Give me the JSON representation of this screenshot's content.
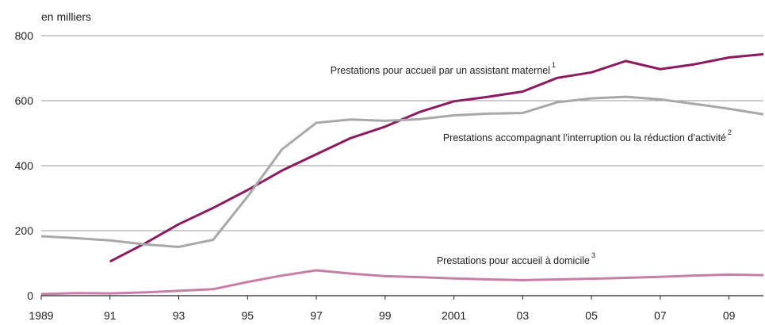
{
  "chart_data": {
    "type": "line",
    "y_label": "en milliers",
    "x": [
      1989,
      1990,
      1991,
      1992,
      1993,
      1994,
      1995,
      1996,
      1997,
      1998,
      1999,
      2000,
      2001,
      2002,
      2003,
      2004,
      2005,
      2006,
      2007,
      2008,
      2009,
      2010
    ],
    "series": [
      {
        "name": "Prestations pour accueil par un assistant maternel",
        "note": "1",
        "color": "#8b1a5e",
        "values": [
          null,
          null,
          105,
          160,
          220,
          270,
          325,
          385,
          435,
          485,
          520,
          565,
          598,
          612,
          628,
          670,
          687,
          722,
          697,
          712,
          733,
          743
        ]
      },
      {
        "name": "Prestations accompagnant l’interruption ou la réduction d’activité",
        "note": "2",
        "color": "#a8a8a8",
        "values": [
          183,
          177,
          170,
          158,
          150,
          172,
          305,
          450,
          532,
          542,
          538,
          543,
          555,
          560,
          562,
          595,
          607,
          612,
          604,
          590,
          575,
          558
        ]
      },
      {
        "name": "Prestations pour accueil à domicile",
        "note": "3",
        "color": "#c77fa5",
        "values": [
          5,
          8,
          7,
          10,
          15,
          20,
          42,
          62,
          78,
          68,
          60,
          57,
          53,
          50,
          48,
          50,
          52,
          55,
          58,
          62,
          65,
          63
        ]
      }
    ],
    "xlim": [
      1989,
      2010
    ],
    "xticks": [
      1989,
      {
        "value": 1991,
        "label": "91"
      },
      {
        "value": 1993,
        "label": "93"
      },
      {
        "value": 1995,
        "label": "95"
      },
      {
        "value": 1997,
        "label": "97"
      },
      {
        "value": 1999,
        "label": "99"
      },
      2001,
      {
        "value": 2003,
        "label": "03"
      },
      {
        "value": 2005,
        "label": "05"
      },
      {
        "value": 2007,
        "label": "07"
      },
      {
        "value": 2009,
        "label": "09"
      }
    ],
    "ylim": [
      0,
      800
    ],
    "yticks": [
      0,
      200,
      400,
      600,
      800
    ],
    "grid": true
  }
}
